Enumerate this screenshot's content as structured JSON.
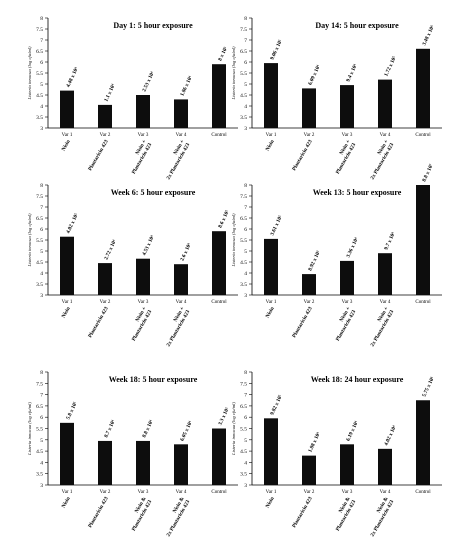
{
  "chart_data": [
    {
      "type": "bar",
      "title": "Day 1: 5 hour exposure",
      "ylabel": "Listeria innocua (log cfu/ml)",
      "ylim": [
        3,
        8
      ],
      "yticks": [
        "3",
        "3.5",
        "4",
        "4.5",
        "5",
        "5.5",
        "6",
        "6.5",
        "7",
        "7.5",
        "8"
      ],
      "categories": [
        "Var 1",
        "Var 2",
        "Var 3",
        "Var 4",
        "Control"
      ],
      "treatments": [
        "Nisin",
        "Plantaricin 423",
        "Nisin + Plantaricin 423",
        "Nisin + 2x Plantaricin 423",
        ""
      ],
      "values": [
        4.7,
        4.05,
        4.5,
        4.3,
        5.9
      ],
      "data_labels": [
        "4.48 x 10⁴",
        "1.1 x 10⁴",
        "2.53 x 10⁴",
        "1.86 x 10⁴",
        "8 x 10⁵"
      ],
      "grid": false,
      "legend": "none"
    },
    {
      "type": "bar",
      "title": "Day 14: 5 hour exposure",
      "ylabel": "Listeria innocua (log cfu/ml)",
      "ylim": [
        3,
        8
      ],
      "yticks": [
        "3",
        "3.5",
        "4",
        "4.5",
        "5",
        "5.5",
        "6",
        "6.5",
        "7",
        "7.5",
        "8"
      ],
      "categories": [
        "Var 1",
        "Var 2",
        "Var 3",
        "Var 4",
        "Control"
      ],
      "treatments": [
        "Nisin",
        "Plantaricin 423",
        "Nisin + Plantaricin 423",
        "Nisin + 2x Plantaricin 423",
        ""
      ],
      "values": [
        5.95,
        4.8,
        4.95,
        5.2,
        6.6
      ],
      "data_labels": [
        "9.06 x 10⁵",
        "6.09 x 10⁴",
        "9.4 x 10⁴",
        "1.72 x 10⁵",
        "3.48 x 10⁶"
      ],
      "grid": false,
      "legend": "none"
    },
    {
      "type": "bar",
      "title": "Week 6: 5 hour exposure",
      "ylabel": "Listeria innocua (log cfu/ml)",
      "ylim": [
        3,
        8
      ],
      "yticks": [
        "3",
        "3.5",
        "4",
        "4.5",
        "5",
        "5.5",
        "6",
        "6.5",
        "7",
        "7.5",
        "8"
      ],
      "categories": [
        "Var 1",
        "Var 2",
        "Var 3",
        "Var 4",
        "Control"
      ],
      "treatments": [
        "Nisin",
        "Plantaricin 423",
        "Nisin + Plantaricin 423",
        "Nisin + 2x Plantaricin 423",
        ""
      ],
      "values": [
        5.65,
        4.45,
        4.65,
        4.4,
        5.9
      ],
      "data_labels": [
        "4.02 x 10⁵",
        "2.72 x 10⁴",
        "4.53 x 10⁴",
        "2.6 x 10⁴",
        "8.6 x 10⁵"
      ],
      "grid": false,
      "legend": "none"
    },
    {
      "type": "bar",
      "title": "Week 13: 5 hour exposure",
      "ylabel": "Listeria innocua (log cfu/ml)",
      "ylim": [
        3,
        8
      ],
      "yticks": [
        "3",
        "3.5",
        "4",
        "4.5",
        "5",
        "5.5",
        "6",
        "6.5",
        "7",
        "7.5",
        "8"
      ],
      "categories": [
        "Var 1",
        "Var 2",
        "Var 3",
        "Var 4",
        "Control"
      ],
      "treatments": [
        "Nisin",
        "Plantaricin 423",
        "Nisin + Plantaricin 423",
        "Nisin + 2x Plantaricin 423",
        ""
      ],
      "values": [
        5.55,
        3.95,
        4.55,
        4.9,
        8.0
      ],
      "data_labels": [
        "3.61 x 10⁵",
        "8.92 x 10³",
        "3.36 x 10⁴",
        "9.7 x 10⁴",
        "8.8 x 10⁷"
      ],
      "grid": false,
      "legend": "none"
    },
    {
      "type": "bar",
      "title": "Week 18: 5 hour exposure",
      "ylabel": "Listeria innocua (log cfu/ml)",
      "ylim": [
        3,
        8
      ],
      "yticks": [
        "3",
        "3.5",
        "4",
        "4.5",
        "5",
        "5.5",
        "6",
        "6.5",
        "7",
        "7.5",
        "8"
      ],
      "categories": [
        "Var 1",
        "Var 2",
        "Var 3",
        "Var 4",
        "Control"
      ],
      "treatments": [
        "Nisin",
        "Plantaricin 423",
        "Nisin & Plantaricin 423",
        "Nisin & 2x Plantaricin 423",
        ""
      ],
      "values": [
        5.75,
        4.95,
        4.95,
        4.8,
        5.5
      ],
      "data_labels": [
        "5.8 x 10⁵",
        "8.7 x 10⁴",
        "8.8 x 10⁴",
        "6.05 x 10⁴",
        "3.3 x 10⁵"
      ],
      "grid": false,
      "legend": "none"
    },
    {
      "type": "bar",
      "title": "Week 18: 24 hour exposure",
      "ylabel": "Listeria innocua (log cfu/ml)",
      "ylim": [
        3,
        8
      ],
      "yticks": [
        "3",
        "3.5",
        "4",
        "4.5",
        "5",
        "5.5",
        "6",
        "6.5",
        "7",
        "7.5",
        "8"
      ],
      "categories": [
        "Var 1",
        "Var 2",
        "Var 3",
        "Var 4",
        "Control"
      ],
      "treatments": [
        "Nisin",
        "Plantaricin 423",
        "Nisin & Plantaricin 423",
        "Nisin & 2x Plantaricin 423",
        ""
      ],
      "values": [
        5.95,
        4.3,
        4.8,
        4.6,
        6.75
      ],
      "data_labels": [
        "9.82 x 10⁵",
        "1.88 x 10⁴",
        "6.19 x 10⁴",
        "4.02 x 10⁴",
        "5.75 x 10⁶"
      ],
      "grid": false,
      "legend": "none"
    }
  ],
  "colors": {
    "bar": "#0d0d0d",
    "axis": "#000000",
    "text": "#000000"
  }
}
